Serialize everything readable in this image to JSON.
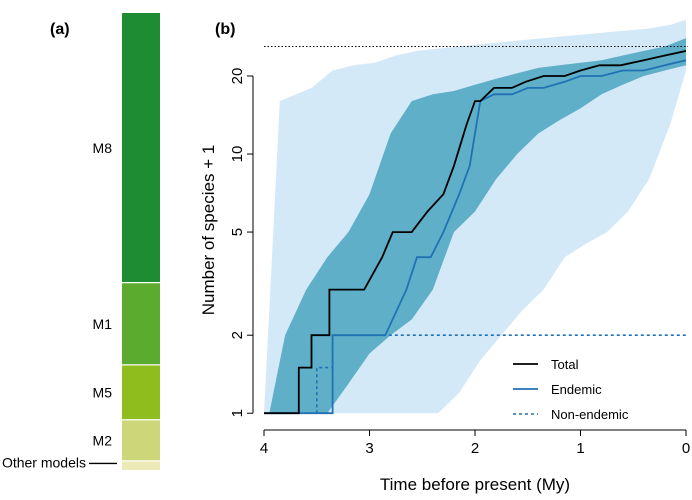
{
  "chart_data": [
    {
      "panel": "(a)",
      "type": "stacked-bar",
      "segments": [
        {
          "label": "M8",
          "value": 0.59,
          "color": "#1e8c32"
        },
        {
          "label": "M1",
          "value": 0.18,
          "color": "#5aab2e"
        },
        {
          "label": "M5",
          "value": 0.12,
          "color": "#8fbd1e"
        },
        {
          "label": "M2",
          "value": 0.09,
          "color": "#cdd77a"
        },
        {
          "label": "Other models",
          "value": 0.02,
          "color": "#ecebb8"
        }
      ]
    },
    {
      "panel": "(b)",
      "type": "line",
      "xlabel": "Time before present (My)",
      "ylabel": "Number of species + 1",
      "xlim": [
        4,
        0
      ],
      "ylim": [
        0.95,
        35
      ],
      "y_scale": "log",
      "x_ticks": [
        4,
        3,
        2,
        1,
        0
      ],
      "y_ticks": [
        1,
        2,
        5,
        10,
        20
      ],
      "reference_line_y": 26,
      "legend_position": "bottom-right",
      "series": [
        {
          "name": "Total",
          "style": "solid",
          "color": "#000000",
          "x": [
            4,
            3.67,
            3.67,
            3.55,
            3.55,
            3.38,
            3.38,
            3.2,
            3.2,
            3.05,
            3.05,
            2.88,
            2.78,
            2.6,
            2.45,
            2.3,
            2.2,
            2.08,
            2.0,
            1.95,
            1.82,
            1.65,
            1.52,
            1.35,
            1.15,
            1.0,
            0.82,
            0.62,
            0.4,
            0.2,
            0
          ],
          "y": [
            1,
            1,
            1.5,
            1.5,
            2,
            2,
            3,
            3,
            3,
            3,
            3,
            4,
            5,
            5,
            6,
            7,
            9,
            13,
            16,
            16,
            18,
            18,
            19,
            20,
            20,
            21,
            22,
            22,
            23,
            24,
            25
          ]
        },
        {
          "name": "Endemic",
          "style": "solid",
          "color": "#2171b5",
          "x": [
            4,
            3.35,
            3.35,
            3.2,
            3.2,
            2.85,
            2.85,
            2.65,
            2.55,
            2.42,
            2.3,
            2.15,
            2.05,
            1.95,
            1.82,
            1.65,
            1.5,
            1.35,
            1.15,
            1.0,
            0.8,
            0.6,
            0.4,
            0.2,
            0
          ],
          "y": [
            1,
            1,
            2,
            2,
            2,
            2,
            2,
            3,
            4,
            4,
            5,
            7,
            9,
            16,
            17,
            17,
            18,
            18,
            19,
            20,
            20,
            21,
            21,
            22,
            23
          ]
        },
        {
          "name": "Non-endemic",
          "style": "dashed",
          "color": "#2171b5",
          "x": [
            3.5,
            3.5,
            3.35,
            3.35,
            0
          ],
          "y": [
            1,
            1.5,
            1.5,
            2,
            2
          ]
        }
      ],
      "bands": [
        {
          "color": "#d4e9f8",
          "x": [
            4,
            3.95,
            3.85,
            3.55,
            3.35,
            3.15,
            2.95,
            2.75,
            2.55,
            2.35,
            2.15,
            1.95,
            1.75,
            1.55,
            1.35,
            1.15,
            0.95,
            0.75,
            0.55,
            0.35,
            0.15,
            0
          ],
          "upper": [
            1,
            2.5,
            16,
            18,
            21,
            22,
            22.5,
            24,
            25,
            25.5,
            26,
            26.5,
            27,
            27.5,
            28,
            28.5,
            29,
            29.5,
            30,
            30.5,
            31.5,
            33
          ],
          "lower": [
            1,
            1,
            1,
            1,
            1,
            1,
            1,
            1,
            1,
            1,
            1.2,
            1.6,
            2,
            2.5,
            3,
            4,
            4.5,
            5,
            6,
            8,
            13,
            21
          ]
        },
        {
          "color": "#5fafc8",
          "x": [
            4,
            3.95,
            3.8,
            3.6,
            3.4,
            3.2,
            3.0,
            2.8,
            2.6,
            2.4,
            2.2,
            2.0,
            1.8,
            1.6,
            1.4,
            1.2,
            1.0,
            0.8,
            0.6,
            0.4,
            0.2,
            0
          ],
          "upper": [
            1,
            1,
            2,
            3,
            4,
            5,
            7,
            12,
            16,
            17,
            17.5,
            18.5,
            19.5,
            20.5,
            21.5,
            22,
            22.5,
            23,
            24,
            25,
            26,
            28
          ],
          "lower": [
            1,
            1,
            1,
            1,
            1,
            1.3,
            1.7,
            2,
            2.3,
            3,
            5,
            6,
            8,
            10,
            12,
            13.5,
            15,
            17,
            18.5,
            20,
            21,
            22
          ]
        }
      ]
    }
  ]
}
